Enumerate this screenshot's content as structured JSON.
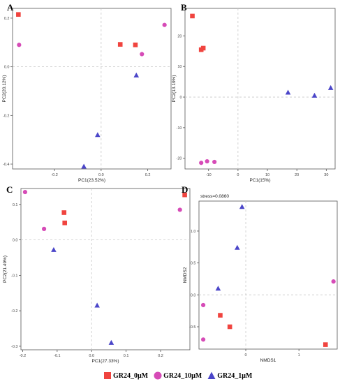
{
  "colors": {
    "GR24_0": "#f0443f",
    "GR24_10": "#d64bb7",
    "GR24_1": "#4b46c9"
  },
  "legend": [
    {
      "label": "GR24_0μM",
      "shape": "square",
      "color": "#f0443f"
    },
    {
      "label": "GR24_10μM",
      "shape": "circle",
      "color": "#d64bb7"
    },
    {
      "label": "GR24_1μM",
      "shape": "triangle",
      "color": "#4b46c9"
    }
  ],
  "chart_data": [
    {
      "panel": "A",
      "type": "scatter",
      "xlabel": "PC1(23.52%)",
      "ylabel": "PC2(20.12%)",
      "xlim": [
        -0.38,
        0.3
      ],
      "ylim": [
        -0.42,
        0.24
      ],
      "xticks": [
        -0.2,
        0.0,
        0.2
      ],
      "yticks": [
        0.2,
        0.0,
        -0.2,
        -0.4
      ],
      "xtick_labels": [
        "-0.2",
        "0.0",
        "0.2"
      ],
      "ytick_labels": [
        "0.2",
        "0.0",
        "-0.2",
        "-0.4"
      ],
      "series": [
        {
          "group": "GR24_0",
          "points": [
            [
              -0.355,
              0.215
            ],
            [
              0.082,
              0.092
            ],
            [
              0.147,
              0.09
            ]
          ]
        },
        {
          "group": "GR24_10",
          "points": [
            [
              -0.352,
              0.09
            ],
            [
              0.175,
              0.052
            ],
            [
              0.272,
              0.172
            ]
          ]
        },
        {
          "group": "GR24_1",
          "points": [
            [
              0.151,
              -0.035
            ],
            [
              -0.015,
              -0.28
            ],
            [
              -0.074,
              -0.41
            ]
          ]
        }
      ]
    },
    {
      "panel": "B",
      "type": "scatter",
      "xlabel": "PC1(15%)",
      "ylabel": "PC2(13.19%)",
      "xlim": [
        -18,
        33
      ],
      "ylim": [
        -23.5,
        29
      ],
      "xticks": [
        -10,
        0,
        10,
        20,
        30
      ],
      "yticks": [
        20,
        10,
        0,
        -10,
        -20
      ],
      "xtick_labels": [
        "-10",
        "0",
        "10",
        "20",
        "30"
      ],
      "ytick_labels": [
        "20",
        "10",
        "0",
        "-10",
        "-20"
      ],
      "series": [
        {
          "group": "GR24_0",
          "points": [
            [
              -15.5,
              26.5
            ],
            [
              -12.5,
              15.5
            ],
            [
              -11.8,
              16
            ]
          ]
        },
        {
          "group": "GR24_10",
          "points": [
            [
              -12.5,
              -21.5
            ],
            [
              -10.5,
              -21
            ],
            [
              -8,
              -21.2
            ]
          ]
        },
        {
          "group": "GR24_1",
          "points": [
            [
              17,
              1.5
            ],
            [
              26,
              0.5
            ],
            [
              31.5,
              3
            ]
          ]
        }
      ]
    },
    {
      "panel": "C",
      "type": "scatter",
      "xlabel": "PC1(27.33%)",
      "ylabel": "PC2(21.49%)",
      "xlim": [
        -0.205,
        0.285
      ],
      "ylim": [
        -0.31,
        0.145
      ],
      "xticks": [
        -0.2,
        -0.1,
        0.0,
        0.1,
        0.2
      ],
      "yticks": [
        0.1,
        0.0,
        -0.1,
        -0.2,
        -0.3
      ],
      "xtick_labels": [
        "-0.2",
        "-0.1",
        "0.0",
        "0.1",
        "0.2"
      ],
      "ytick_labels": [
        "0.1",
        "0.0",
        "-0.1",
        "-0.2",
        "-0.3"
      ],
      "series": [
        {
          "group": "GR24_0",
          "points": [
            [
              -0.08,
              0.077
            ],
            [
              -0.078,
              0.048
            ],
            [
              0.27,
              0.127
            ]
          ]
        },
        {
          "group": "GR24_10",
          "points": [
            [
              -0.193,
              0.135
            ],
            [
              -0.138,
              0.031
            ],
            [
              0.256,
              0.085
            ]
          ]
        },
        {
          "group": "GR24_1",
          "points": [
            [
              -0.11,
              -0.028
            ],
            [
              0.016,
              -0.185
            ],
            [
              0.057,
              -0.29
            ]
          ]
        }
      ]
    },
    {
      "panel": "D",
      "type": "scatter",
      "title": "stress=0.0860",
      "xlabel": "NMDS1",
      "ylabel": "NMDS2",
      "xlim": [
        -0.88,
        1.72
      ],
      "ylim": [
        -0.85,
        1.47
      ],
      "xticks": [
        0,
        1
      ],
      "yticks": [
        1.0,
        0.5,
        0.0,
        -0.5
      ],
      "xtick_labels": [
        "0",
        "1"
      ],
      "ytick_labels": [
        "1.0",
        "0.5",
        "0.0",
        "-0.5"
      ],
      "series": [
        {
          "group": "GR24_0",
          "points": [
            [
              -0.48,
              -0.32
            ],
            [
              -0.3,
              -0.5
            ],
            [
              1.5,
              -0.78
            ]
          ]
        },
        {
          "group": "GR24_10",
          "points": [
            [
              -0.8,
              -0.16
            ],
            [
              -0.8,
              -0.7
            ],
            [
              1.65,
              0.21
            ]
          ]
        },
        {
          "group": "GR24_1",
          "points": [
            [
              -0.07,
              1.38
            ],
            [
              -0.16,
              0.74
            ],
            [
              -0.52,
              0.1
            ]
          ]
        }
      ]
    }
  ]
}
